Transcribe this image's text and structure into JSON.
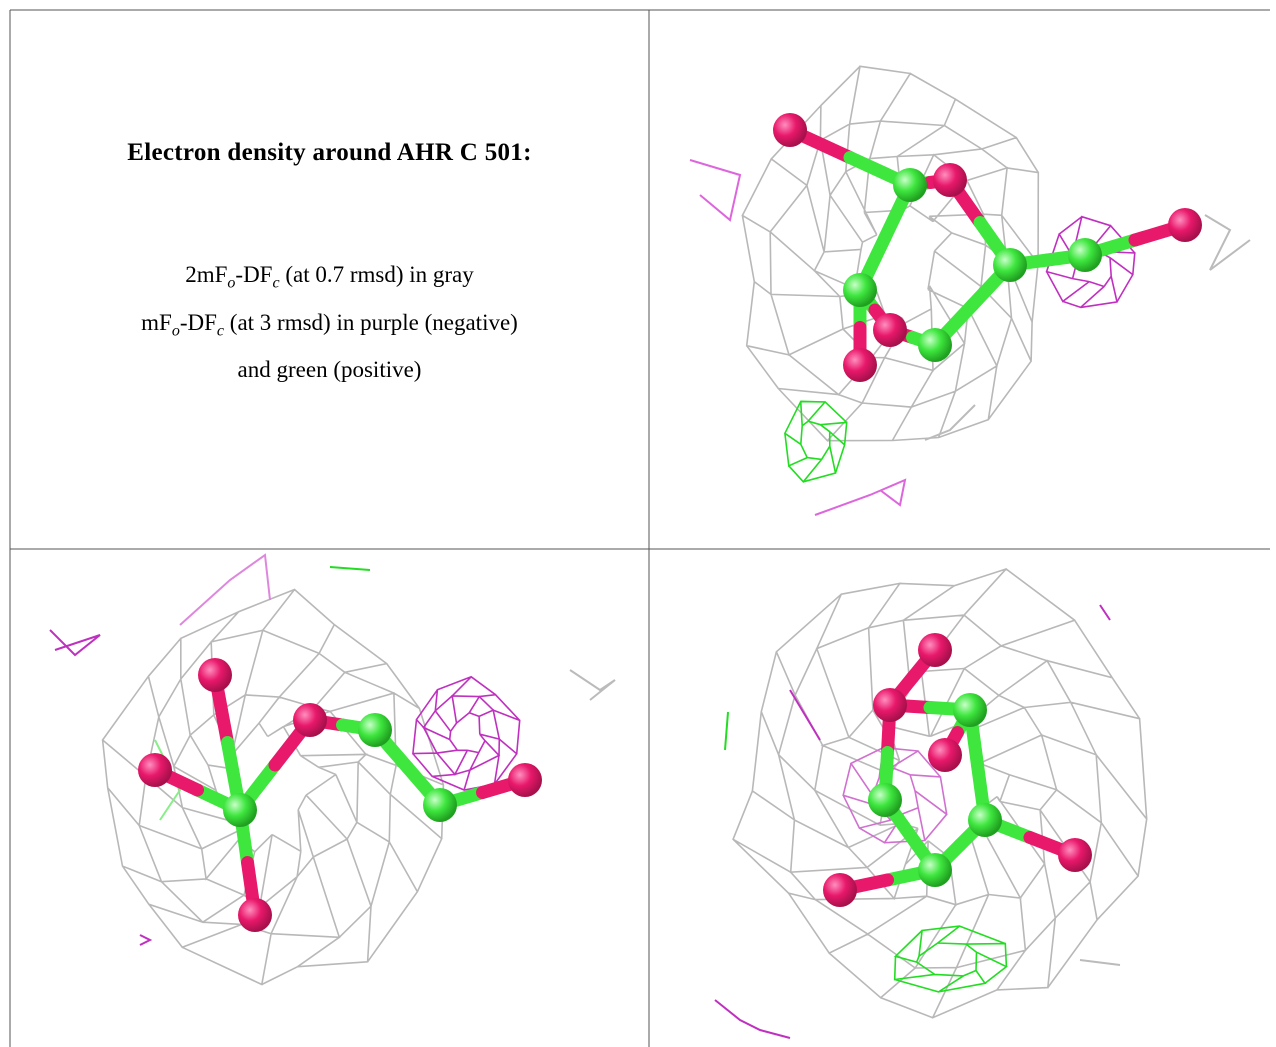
{
  "document": {
    "title": "Electron density around AHR C 501:",
    "legend_lines": [
      [
        "2mF",
        "o",
        "-DF",
        "c",
        " (at 0.7 rmsd) in gray"
      ],
      [
        "mF",
        "o",
        "-DF",
        "c",
        " (at 3 rmsd) in purple (negative)"
      ],
      [
        "and green (positive)"
      ]
    ]
  }
}
